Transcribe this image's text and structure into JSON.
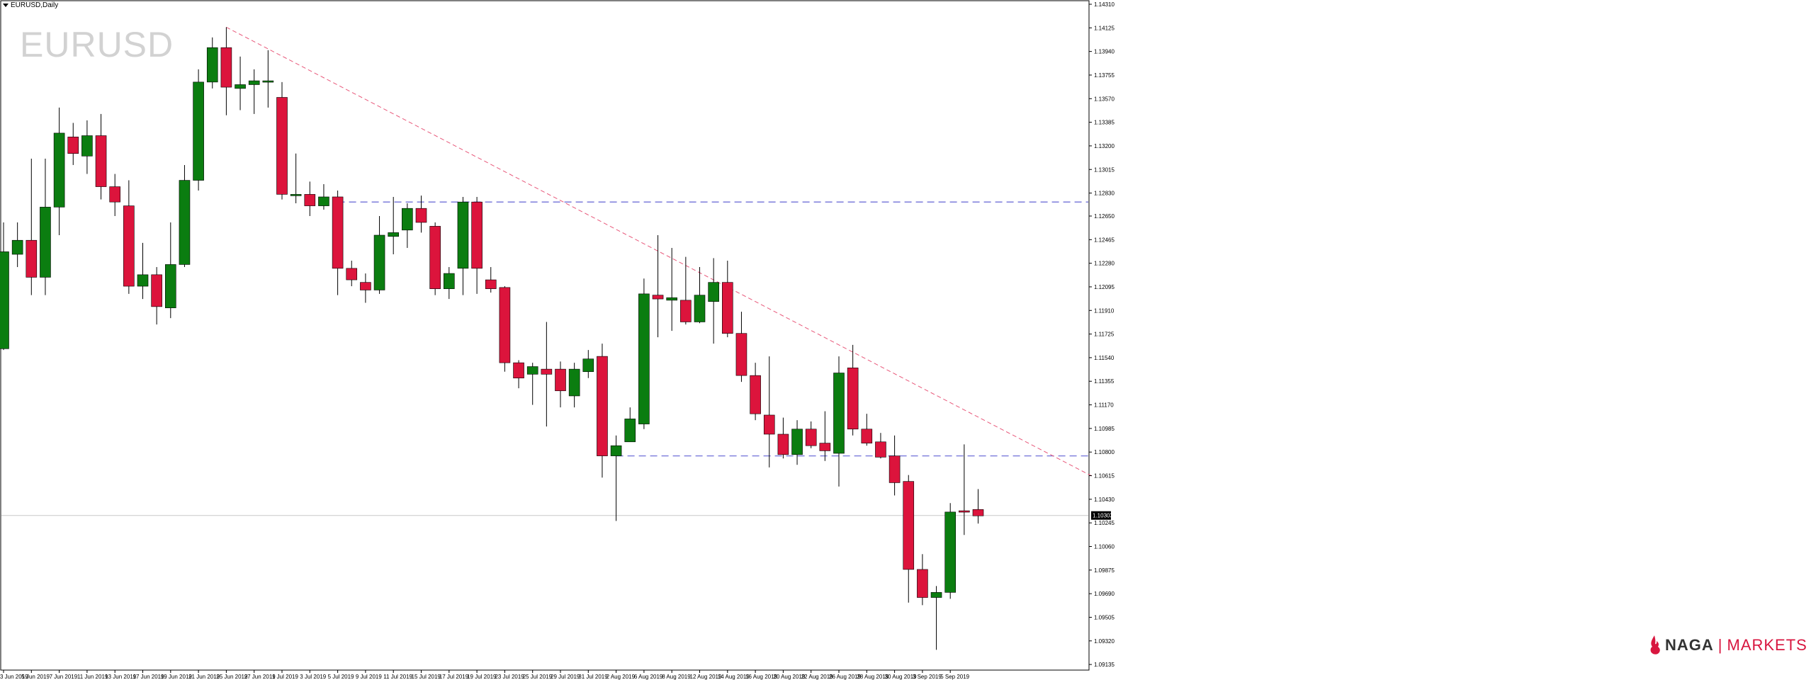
{
  "header": {
    "title": "EURUSD,Daily"
  },
  "watermark": {
    "symbol": "EURUSD"
  },
  "logo": {
    "brand": "NAGA",
    "separator": "|",
    "suffix": "MARKETS",
    "icon": "naga-flame-icon"
  },
  "colors": {
    "bull": "#0b7d10",
    "bear": "#dc143c",
    "trend": "#e8587a",
    "levels": "#7070d8",
    "current": "#c8c8c8"
  },
  "chart_data": {
    "type": "candlestick",
    "symbol": "EURUSD",
    "timeframe": "Daily",
    "price_range": [
      1.0913,
      1.1431
    ],
    "y_ticks": [
      "1.14310",
      "1.14125",
      "1.13940",
      "1.13755",
      "1.13570",
      "1.13385",
      "1.13200",
      "1.13015",
      "1.12830",
      "1.12650",
      "1.12465",
      "1.12280",
      "1.12095",
      "1.11910",
      "1.11725",
      "1.11540",
      "1.11355",
      "1.11170",
      "1.10985",
      "1.10800",
      "1.10615",
      "1.10430",
      "1.10245",
      "1.10060",
      "1.09875",
      "1.09690",
      "1.09505",
      "1.09320",
      "1.09135"
    ],
    "x_ticks": [
      {
        "label": "3 Jun 2019",
        "i": 0
      },
      {
        "label": "5 Jun 2019",
        "i": 2
      },
      {
        "label": "7 Jun 2019",
        "i": 4
      },
      {
        "label": "11 Jun 2019",
        "i": 6
      },
      {
        "label": "13 Jun 2019",
        "i": 8
      },
      {
        "label": "17 Jun 2019",
        "i": 10
      },
      {
        "label": "19 Jun 2019",
        "i": 12
      },
      {
        "label": "21 Jun 2019",
        "i": 14
      },
      {
        "label": "25 Jun 2019",
        "i": 16
      },
      {
        "label": "27 Jun 2019",
        "i": 18
      },
      {
        "label": "1 Jul 2019",
        "i": 20
      },
      {
        "label": "3 Jul 2019",
        "i": 22
      },
      {
        "label": "5 Jul 2019",
        "i": 24
      },
      {
        "label": "9 Jul 2019",
        "i": 26
      },
      {
        "label": "11 Jul 2019",
        "i": 28
      },
      {
        "label": "15 Jul 2019",
        "i": 30
      },
      {
        "label": "17 Jul 2019",
        "i": 32
      },
      {
        "label": "19 Jul 2019",
        "i": 34
      },
      {
        "label": "23 Jul 2019",
        "i": 36
      },
      {
        "label": "25 Jul 2019",
        "i": 38
      },
      {
        "label": "29 Jul 2019",
        "i": 40
      },
      {
        "label": "31 Jul 2019",
        "i": 42
      },
      {
        "label": "2 Aug 2019",
        "i": 44
      },
      {
        "label": "6 Aug 2019",
        "i": 46
      },
      {
        "label": "8 Aug 2019",
        "i": 48
      },
      {
        "label": "12 Aug 2019",
        "i": 50
      },
      {
        "label": "14 Aug 2019",
        "i": 52
      },
      {
        "label": "16 Aug 2019",
        "i": 54
      },
      {
        "label": "20 Aug 2019",
        "i": 56
      },
      {
        "label": "22 Aug 2019",
        "i": 58
      },
      {
        "label": "26 Aug 2019",
        "i": 60
      },
      {
        "label": "28 Aug 2019",
        "i": 62
      },
      {
        "label": "30 Aug 2019",
        "i": 64
      },
      {
        "label": "3 Sep 2019",
        "i": 66
      },
      {
        "label": "5 Sep 2019",
        "i": 68
      }
    ],
    "candles": [
      {
        "o": 1.1161,
        "h": 1.126,
        "l": 1.116,
        "c": 1.1237
      },
      {
        "o": 1.1235,
        "h": 1.126,
        "l": 1.1225,
        "c": 1.1246
      },
      {
        "o": 1.1246,
        "h": 1.131,
        "l": 1.1203,
        "c": 1.1217
      },
      {
        "o": 1.1217,
        "h": 1.131,
        "l": 1.1203,
        "c": 1.1272
      },
      {
        "o": 1.1272,
        "h": 1.135,
        "l": 1.125,
        "c": 1.133
      },
      {
        "o": 1.1327,
        "h": 1.1338,
        "l": 1.1305,
        "c": 1.1314
      },
      {
        "o": 1.1312,
        "h": 1.134,
        "l": 1.1298,
        "c": 1.1328
      },
      {
        "o": 1.1328,
        "h": 1.1345,
        "l": 1.1278,
        "c": 1.1288
      },
      {
        "o": 1.1288,
        "h": 1.1298,
        "l": 1.1265,
        "c": 1.1276
      },
      {
        "o": 1.1273,
        "h": 1.1293,
        "l": 1.1204,
        "c": 1.121
      },
      {
        "o": 1.121,
        "h": 1.1244,
        "l": 1.12,
        "c": 1.1219
      },
      {
        "o": 1.1219,
        "h": 1.1225,
        "l": 1.118,
        "c": 1.1194
      },
      {
        "o": 1.1193,
        "h": 1.126,
        "l": 1.1185,
        "c": 1.1227
      },
      {
        "o": 1.1227,
        "h": 1.1305,
        "l": 1.1225,
        "c": 1.1293
      },
      {
        "o": 1.1293,
        "h": 1.138,
        "l": 1.1285,
        "c": 1.137
      },
      {
        "o": 1.137,
        "h": 1.1405,
        "l": 1.1365,
        "c": 1.1397
      },
      {
        "o": 1.1397,
        "h": 1.1413,
        "l": 1.1344,
        "c": 1.1366
      },
      {
        "o": 1.1365,
        "h": 1.139,
        "l": 1.1348,
        "c": 1.1368
      },
      {
        "o": 1.1368,
        "h": 1.138,
        "l": 1.1345,
        "c": 1.1371
      },
      {
        "o": 1.1371,
        "h": 1.1395,
        "l": 1.135,
        "c": 1.1371
      },
      {
        "o": 1.1358,
        "h": 1.137,
        "l": 1.1278,
        "c": 1.1282
      },
      {
        "o": 1.1282,
        "h": 1.1314,
        "l": 1.1275,
        "c": 1.1282
      },
      {
        "o": 1.1282,
        "h": 1.1292,
        "l": 1.1265,
        "c": 1.1273
      },
      {
        "o": 1.1273,
        "h": 1.129,
        "l": 1.127,
        "c": 1.128
      },
      {
        "o": 1.128,
        "h": 1.1285,
        "l": 1.1203,
        "c": 1.1224
      },
      {
        "o": 1.1224,
        "h": 1.123,
        "l": 1.121,
        "c": 1.1215
      },
      {
        "o": 1.1213,
        "h": 1.122,
        "l": 1.1197,
        "c": 1.1207
      },
      {
        "o": 1.1207,
        "h": 1.1265,
        "l": 1.1204,
        "c": 1.125
      },
      {
        "o": 1.1249,
        "h": 1.128,
        "l": 1.1235,
        "c": 1.1252
      },
      {
        "o": 1.1254,
        "h": 1.1275,
        "l": 1.124,
        "c": 1.1271
      },
      {
        "o": 1.1271,
        "h": 1.1281,
        "l": 1.1252,
        "c": 1.126
      },
      {
        "o": 1.1257,
        "h": 1.126,
        "l": 1.1203,
        "c": 1.1208
      },
      {
        "o": 1.1208,
        "h": 1.1225,
        "l": 1.12,
        "c": 1.122
      },
      {
        "o": 1.1224,
        "h": 1.128,
        "l": 1.1203,
        "c": 1.1276
      },
      {
        "o": 1.1276,
        "h": 1.128,
        "l": 1.1204,
        "c": 1.1224
      },
      {
        "o": 1.1215,
        "h": 1.1225,
        "l": 1.1205,
        "c": 1.1208
      },
      {
        "o": 1.1209,
        "h": 1.121,
        "l": 1.1143,
        "c": 1.115
      },
      {
        "o": 1.115,
        "h": 1.1152,
        "l": 1.113,
        "c": 1.1138
      },
      {
        "o": 1.1141,
        "h": 1.115,
        "l": 1.1117,
        "c": 1.1147
      },
      {
        "o": 1.1145,
        "h": 1.1182,
        "l": 1.11,
        "c": 1.1141
      },
      {
        "o": 1.1145,
        "h": 1.1151,
        "l": 1.1115,
        "c": 1.1128
      },
      {
        "o": 1.1124,
        "h": 1.115,
        "l": 1.1115,
        "c": 1.1145
      },
      {
        "o": 1.1143,
        "h": 1.116,
        "l": 1.1138,
        "c": 1.1153
      },
      {
        "o": 1.1155,
        "h": 1.1165,
        "l": 1.106,
        "c": 1.1077
      },
      {
        "o": 1.1077,
        "h": 1.1093,
        "l": 1.1026,
        "c": 1.1085
      },
      {
        "o": 1.1088,
        "h": 1.1115,
        "l": 1.1088,
        "c": 1.1106
      },
      {
        "o": 1.1102,
        "h": 1.1216,
        "l": 1.1098,
        "c": 1.1204
      },
      {
        "o": 1.1203,
        "h": 1.125,
        "l": 1.117,
        "c": 1.12
      },
      {
        "o": 1.1199,
        "h": 1.124,
        "l": 1.1175,
        "c": 1.1201
      },
      {
        "o": 1.1199,
        "h": 1.1233,
        "l": 1.118,
        "c": 1.1182
      },
      {
        "o": 1.1182,
        "h": 1.1225,
        "l": 1.1181,
        "c": 1.1203
      },
      {
        "o": 1.1198,
        "h": 1.1232,
        "l": 1.1165,
        "c": 1.1213
      },
      {
        "o": 1.1213,
        "h": 1.123,
        "l": 1.117,
        "c": 1.1173
      },
      {
        "o": 1.1173,
        "h": 1.119,
        "l": 1.1135,
        "c": 1.114
      },
      {
        "o": 1.114,
        "h": 1.115,
        "l": 1.1105,
        "c": 1.111
      },
      {
        "o": 1.1109,
        "h": 1.1155,
        "l": 1.1068,
        "c": 1.1094
      },
      {
        "o": 1.1094,
        "h": 1.1107,
        "l": 1.1075,
        "c": 1.1078
      },
      {
        "o": 1.1078,
        "h": 1.1105,
        "l": 1.107,
        "c": 1.1098
      },
      {
        "o": 1.1098,
        "h": 1.1104,
        "l": 1.1083,
        "c": 1.1085
      },
      {
        "o": 1.1087,
        "h": 1.1112,
        "l": 1.1073,
        "c": 1.1081
      },
      {
        "o": 1.1079,
        "h": 1.1155,
        "l": 1.1053,
        "c": 1.1142
      },
      {
        "o": 1.1146,
        "h": 1.1164,
        "l": 1.1093,
        "c": 1.1098
      },
      {
        "o": 1.1098,
        "h": 1.111,
        "l": 1.1085,
        "c": 1.1087
      },
      {
        "o": 1.1088,
        "h": 1.1095,
        "l": 1.1075,
        "c": 1.1076
      },
      {
        "o": 1.1077,
        "h": 1.1093,
        "l": 1.1046,
        "c": 1.1056
      },
      {
        "o": 1.1057,
        "h": 1.1062,
        "l": 1.0962,
        "c": 1.0988
      },
      {
        "o": 1.0988,
        "h": 1.1,
        "l": 1.096,
        "c": 1.0966
      },
      {
        "o": 1.0966,
        "h": 1.0975,
        "l": 1.0925,
        "c": 1.097
      },
      {
        "o": 1.097,
        "h": 1.104,
        "l": 1.0965,
        "c": 1.1033
      },
      {
        "o": 1.1034,
        "h": 1.1086,
        "l": 1.1015,
        "c": 1.1033
      },
      {
        "o": 1.1035,
        "h": 1.1051,
        "l": 1.1024,
        "c": 1.103
      }
    ],
    "current_price": "1.10303",
    "horizontal_levels": [
      1.1276,
      1.1077
    ],
    "trendline": {
      "from": {
        "i": 16,
        "p": 1.1413
      },
      "to": {
        "i": 78,
        "p": 1.1061
      }
    }
  }
}
